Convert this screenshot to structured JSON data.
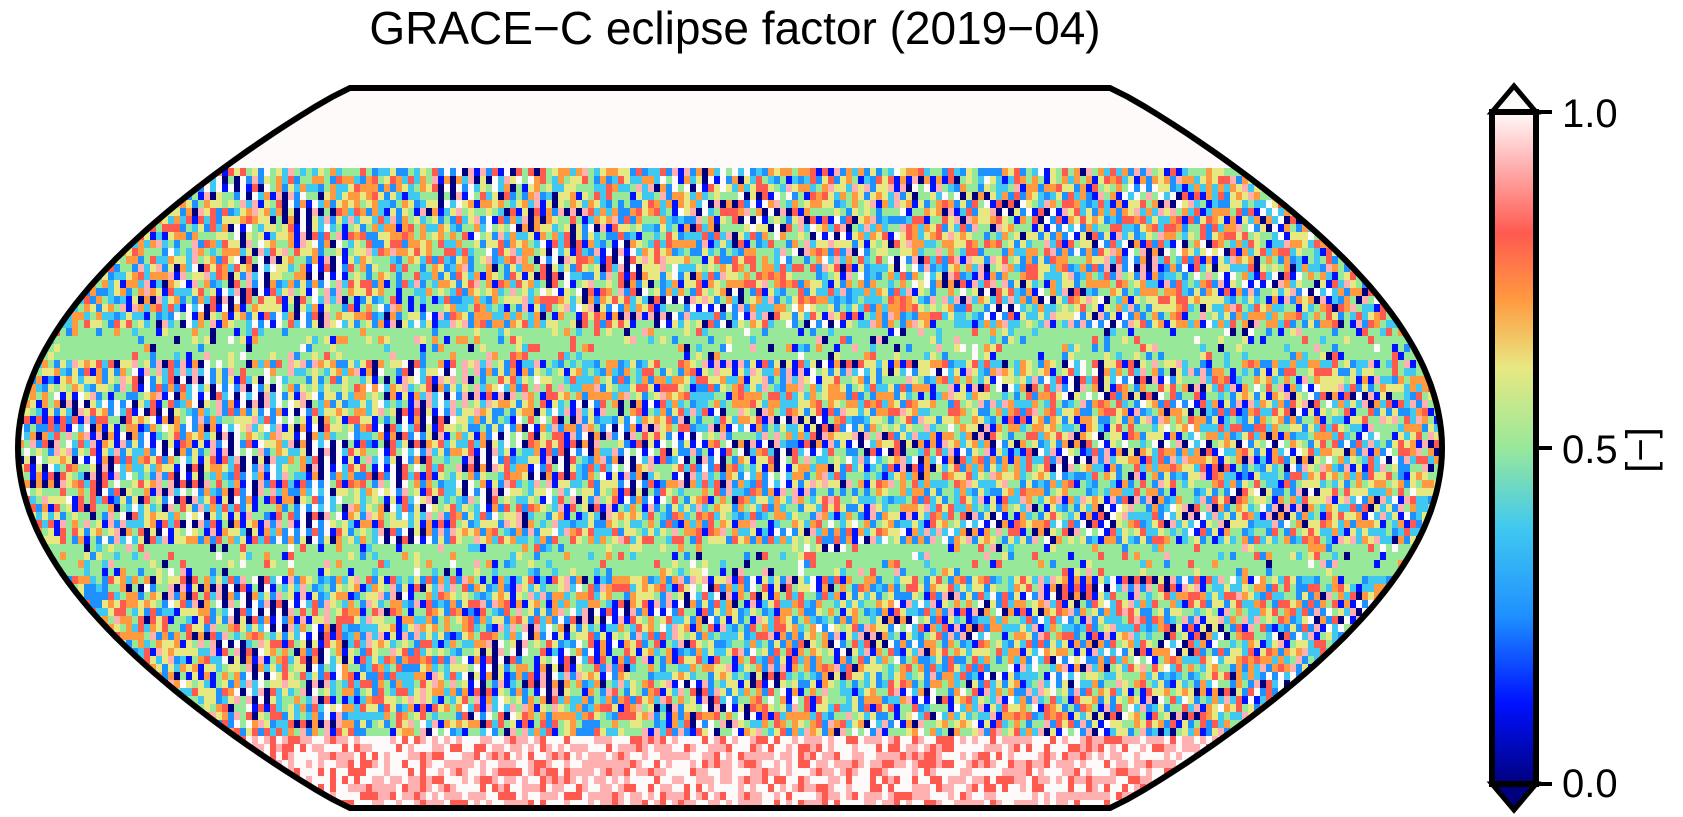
{
  "chart_data": {
    "type": "heatmap",
    "title": "GRACE−C eclipse factor (2019−04)",
    "projection": "Robinson (global)",
    "colormap": "jet-like (dark blue → cyan → green → yellow → red → white)",
    "colorbar": {
      "ticks": [
        {
          "value": 0.0,
          "label": "0.0"
        },
        {
          "value": 0.5,
          "label": "0.5"
        },
        {
          "value": 1.0,
          "label": "1.0"
        }
      ],
      "unit_label": "[−]",
      "range": [
        0.0,
        1.0
      ],
      "extend": "both"
    },
    "colors": {
      "c0": "#00007f",
      "c1": "#0011ff",
      "c2": "#1e90ff",
      "c3": "#40c8f0",
      "c4": "#98e89a",
      "c5": "#e8e882",
      "c6": "#ff9a40",
      "c7": "#ff5a50",
      "c8": "#ffb0b0",
      "c9": "#fffafa"
    }
  }
}
